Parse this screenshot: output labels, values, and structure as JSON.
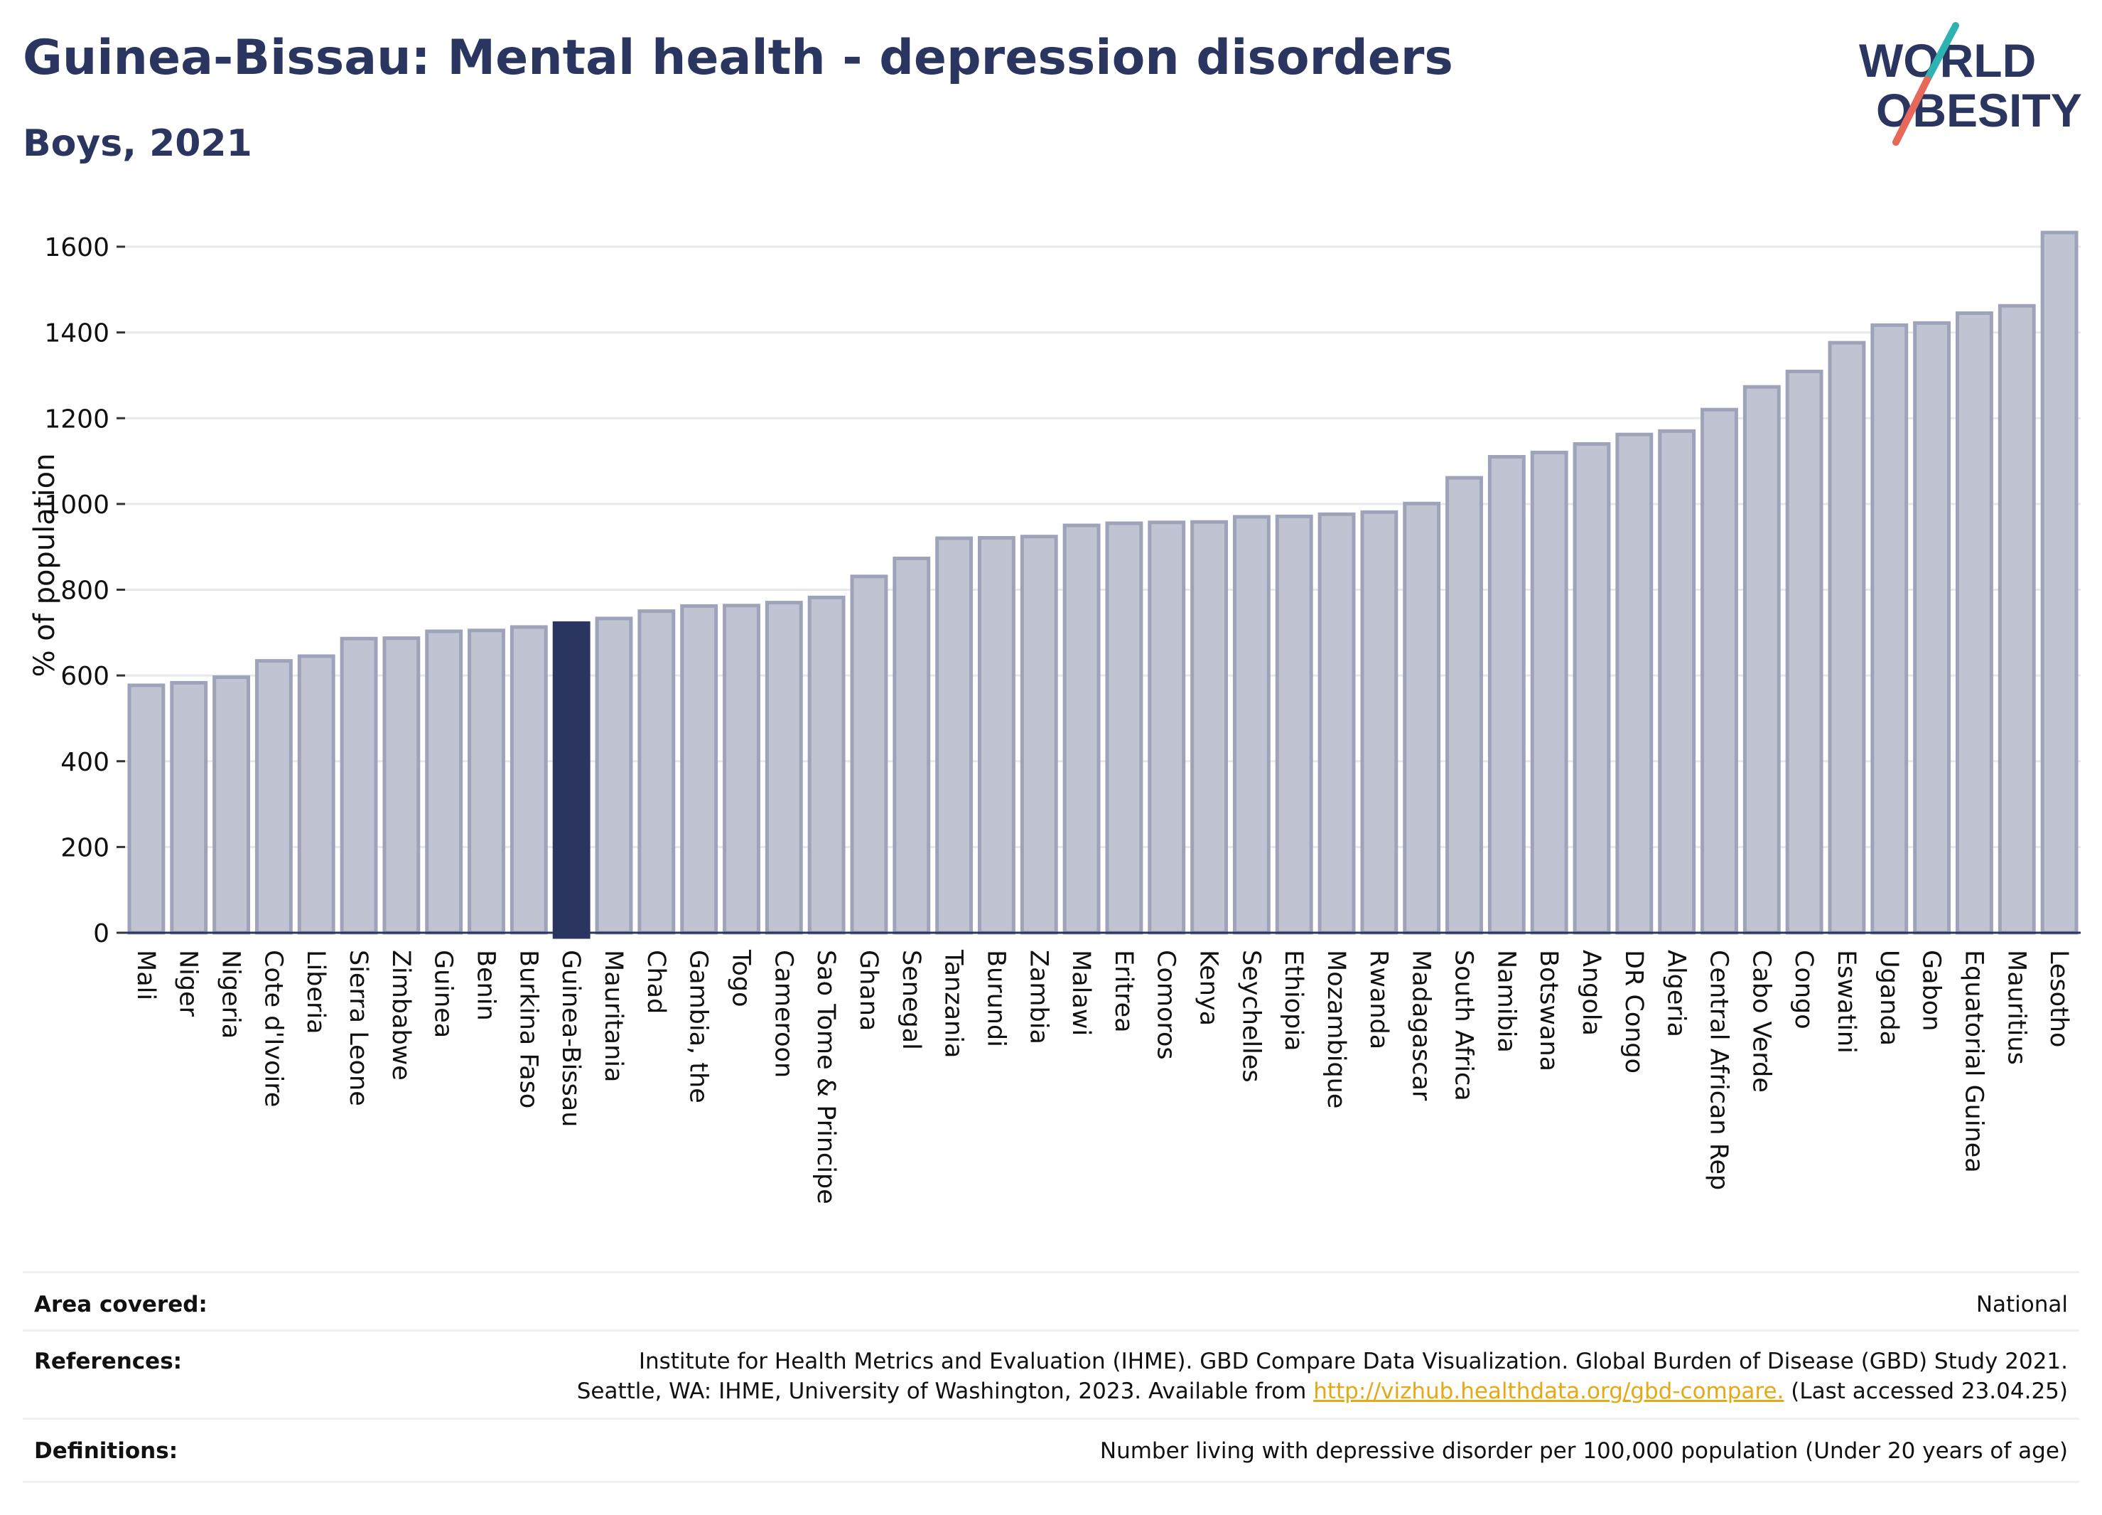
{
  "header": {
    "title": "Guinea-Bissau: Mental health - depression disorders",
    "subtitle": "Boys, 2021"
  },
  "logo": {
    "line1": "WORLD",
    "line2": "OBESITY",
    "accent_teal": "#2fb3b1",
    "accent_coral": "#e8685a",
    "text_color": "#2a3560"
  },
  "colors": {
    "highlight_bar": "#2a3560",
    "other_bar": "#c0c3d2",
    "other_bar_border": "#9ea3ba",
    "grid": "#e7e8ec"
  },
  "chart_data": {
    "type": "bar",
    "title": "Guinea-Bissau: Mental health - depression disorders",
    "subtitle": "Boys, 2021",
    "ylabel": "% of population",
    "xlabel": "",
    "ylim": [
      0,
      1650
    ],
    "yticks": [
      0,
      200,
      400,
      600,
      800,
      1000,
      1200,
      1400,
      1600
    ],
    "highlight": "Guinea-Bissau",
    "grid": true,
    "categories": [
      "Mali",
      "Niger",
      "Nigeria",
      "Cote d'Ivoire",
      "Liberia",
      "Sierra Leone",
      "Zimbabwe",
      "Guinea",
      "Benin",
      "Burkina Faso",
      "Guinea-Bissau",
      "Mauritania",
      "Chad",
      "Gambia, the",
      "Togo",
      "Cameroon",
      "Sao Tome & Principe",
      "Ghana",
      "Senegal",
      "Tanzania",
      "Burundi",
      "Zambia",
      "Malawi",
      "Eritrea",
      "Comoros",
      "Kenya",
      "Seychelles",
      "Ethiopia",
      "Mozambique",
      "Rwanda",
      "Madagascar",
      "South Africa",
      "Namibia",
      "Botswana",
      "Angola",
      "DR Congo",
      "Algeria",
      "Central African Rep",
      "Cabo Verde",
      "Congo",
      "Eswatini",
      "Uganda",
      "Gabon",
      "Equatorial Guinea",
      "Mauritius",
      "Lesotho"
    ],
    "values": [
      577,
      583,
      596,
      634,
      645,
      686,
      687,
      703,
      705,
      713,
      722,
      733,
      750,
      762,
      763,
      770,
      782,
      831,
      873,
      920,
      921,
      924,
      950,
      955,
      957,
      958,
      970,
      971,
      976,
      981,
      1001,
      1061,
      1110,
      1120,
      1140,
      1162,
      1170,
      1220,
      1273,
      1309,
      1376,
      1417,
      1422,
      1445,
      1462,
      1633
    ]
  },
  "footer": {
    "area_label": "Area covered:",
    "area_value": "National",
    "references_label": "References:",
    "references_line1": "Institute for Health Metrics and Evaluation (IHME). GBD Compare Data Visualization. Global Burden of Disease (GBD) Study 2021.",
    "references_line2_prefix": "Seattle, WA: IHME, University of Washington, 2023. Available from",
    "references_link": "http://vizhub.healthdata.org/gbd-compare.",
    "references_suffix": "(Last accessed 23.04.25)",
    "definitions_label": "Definitions:",
    "definitions_value": "Number living with depressive disorder per 100,000 population (Under 20 years of age)"
  }
}
